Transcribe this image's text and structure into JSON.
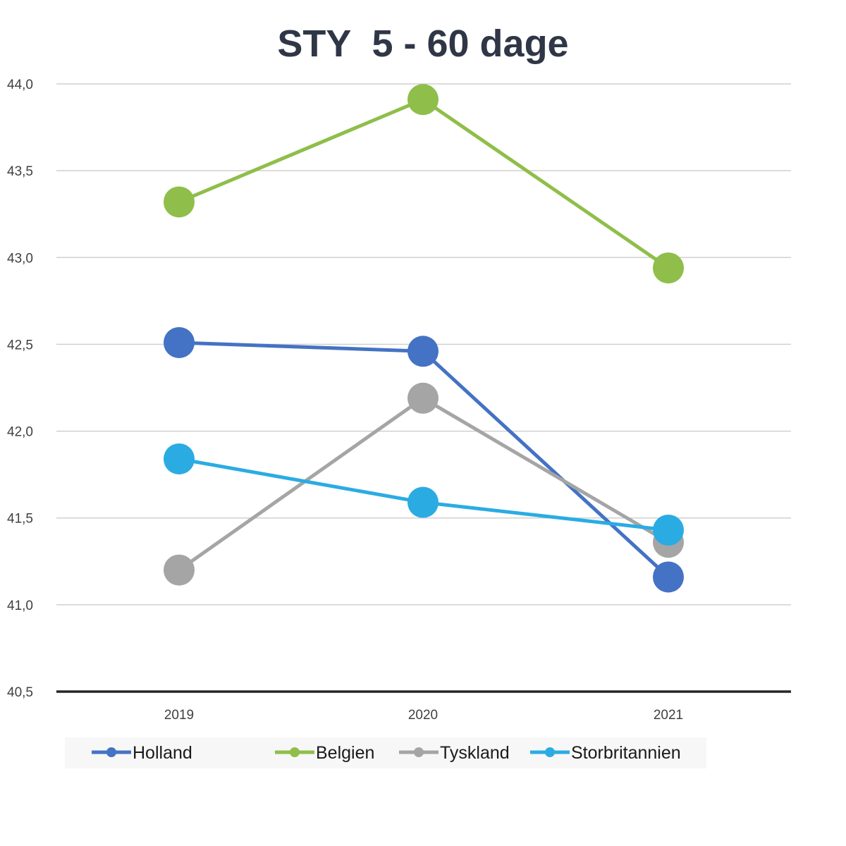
{
  "chart_data": {
    "type": "line",
    "title": "STY  5 - 60 dage",
    "categories": [
      "2019",
      "2020",
      "2021"
    ],
    "y_tick_labels": [
      "40,5",
      "41,0",
      "41,5",
      "42,0",
      "42,5",
      "43,0",
      "43,5",
      "44,0"
    ],
    "ylim": [
      40.5,
      44.0
    ],
    "grid": true,
    "legend_position": "bottom",
    "series": [
      {
        "name": "Holland",
        "color": "#4472c4",
        "values": [
          42.51,
          42.46,
          41.16
        ]
      },
      {
        "name": "Belgien",
        "color": "#8fbe4a",
        "values": [
          43.32,
          43.91,
          42.94
        ]
      },
      {
        "name": "Tyskland",
        "color": "#a5a5a5",
        "values": [
          41.2,
          42.19,
          41.36
        ]
      },
      {
        "name": "Storbritannien",
        "color": "#2aace2",
        "values": [
          41.84,
          41.59,
          41.43
        ]
      }
    ]
  }
}
